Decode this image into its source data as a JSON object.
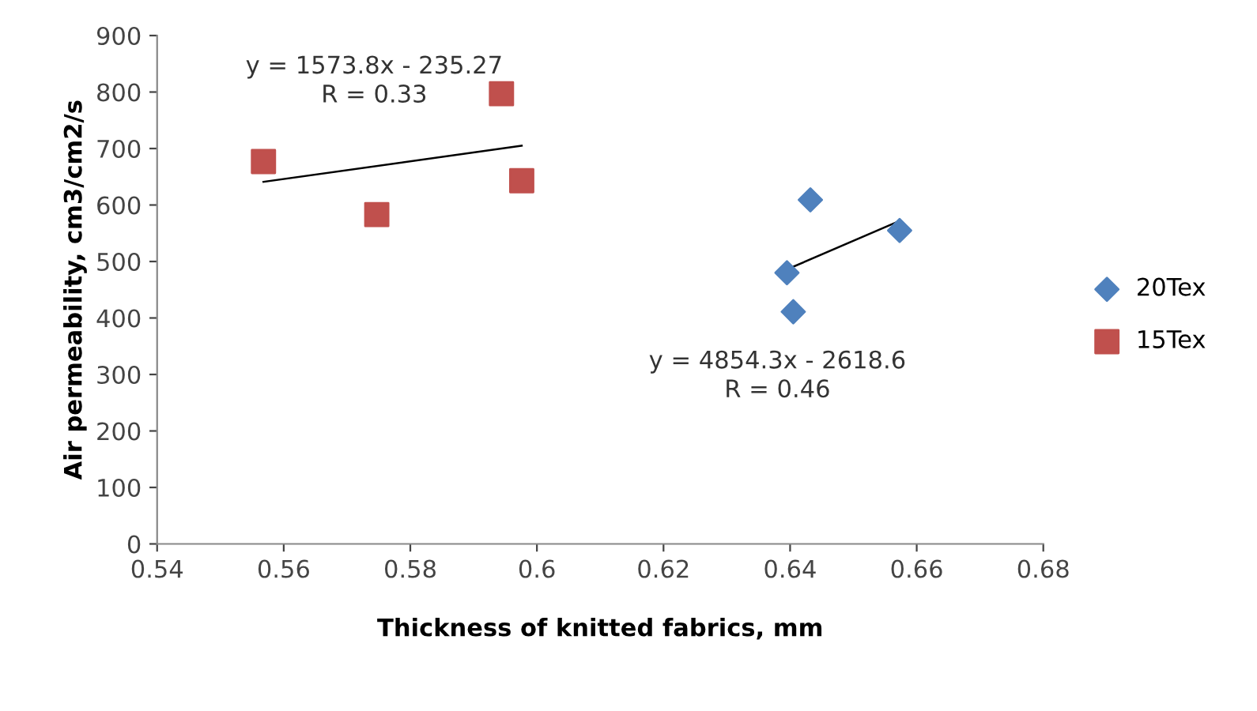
{
  "chart_data": {
    "type": "scatter",
    "xlabel": "Thickness of knitted fabrics, mm",
    "ylabel": "Air permeability, cm3/cm2/s",
    "xlim": [
      0.54,
      0.68
    ],
    "xticks": [
      0.54,
      0.56,
      0.58,
      {
        "value": 0.6,
        "label": "0.6"
      },
      0.62,
      0.64,
      0.66,
      0.68
    ],
    "ylim": [
      0,
      900
    ],
    "yticks": [
      0,
      100,
      200,
      300,
      400,
      500,
      600,
      700,
      800,
      900
    ],
    "grid": false,
    "legend": "right",
    "series": [
      {
        "name": "20Tex",
        "marker": "diamond",
        "color": "#4f81bd",
        "x": [
          0.6432,
          0.6573,
          0.6395,
          0.6405
        ],
        "values": [
          609,
          555,
          480,
          411
        ]
      },
      {
        "name": "15Tex",
        "marker": "square",
        "color": "#c0504d",
        "x": [
          0.5568,
          0.5747,
          0.5944,
          0.5976
        ],
        "values": [
          677,
          583,
          797,
          643
        ]
      },
      {
        "type": "line",
        "marker": "none",
        "color": "#000000",
        "x": [
          0.6395,
          0.6573
        ],
        "values": [
          486,
          572
        ]
      },
      {
        "type": "line",
        "marker": "none",
        "color": "#000000",
        "x": [
          0.5568,
          0.5976
        ],
        "values": [
          641,
          705
        ]
      }
    ],
    "annotations": [
      "y = 1573.8x - 235.27\nR = 0.33",
      "y = 4854.3x - 2618.6\nR = 0.46"
    ]
  }
}
